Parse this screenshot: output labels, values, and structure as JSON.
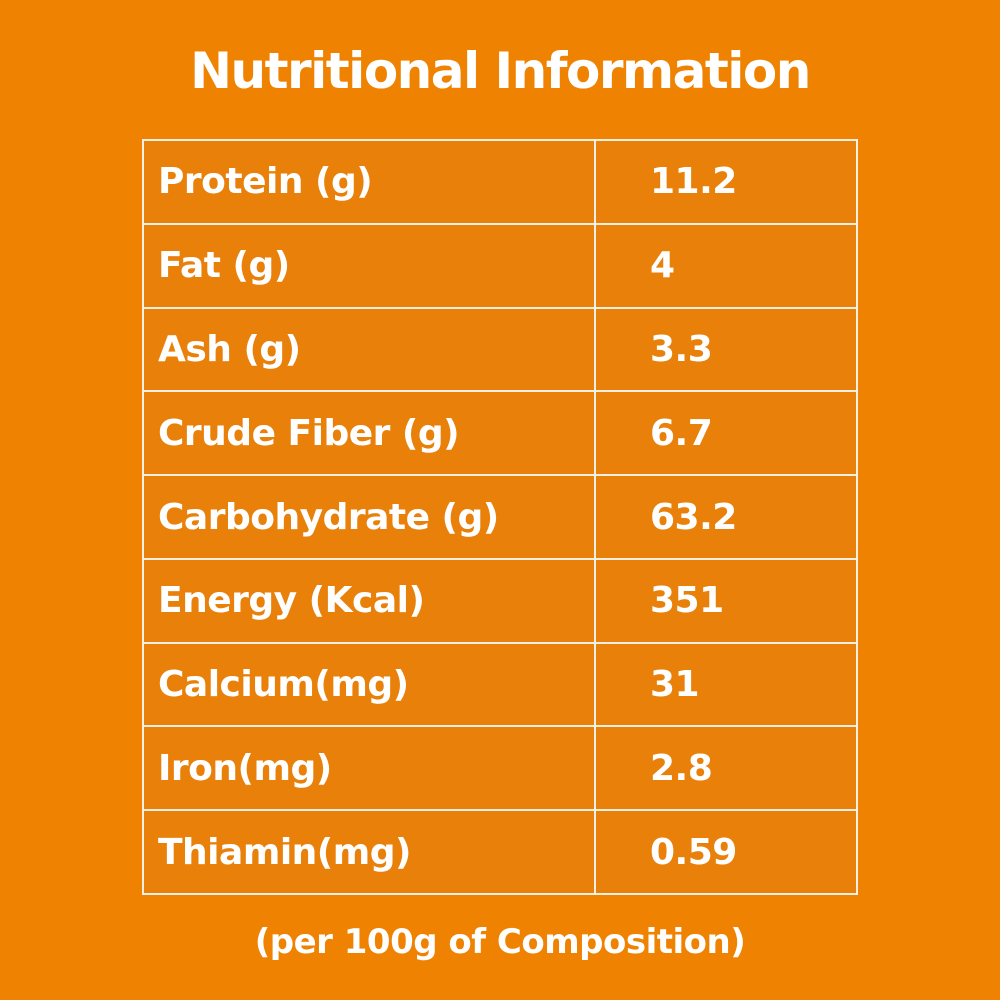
{
  "page": {
    "title": "Nutritional Information",
    "footer": "(per 100g of Composition)",
    "colors": {
      "background": "#EF8301",
      "cell": "#E8800A",
      "border": "#F6EFE4",
      "text": "#FFFFFF"
    }
  },
  "table": {
    "rows": [
      {
        "label": "Protein (g)",
        "value": "11.2"
      },
      {
        "label": "Fat (g)",
        "value": "4"
      },
      {
        "label": "Ash (g)",
        "value": "3.3"
      },
      {
        "label": "Crude Fiber (g)",
        "value": "6.7"
      },
      {
        "label": "Carbohydrate (g)",
        "value": "63.2"
      },
      {
        "label": "Energy (Kcal)",
        "value": "351"
      },
      {
        "label": "Calcium(mg)",
        "value": "31"
      },
      {
        "label": "Iron(mg)",
        "value": "2.8"
      },
      {
        "label": "Thiamin(mg)",
        "value": "0.59"
      }
    ]
  }
}
